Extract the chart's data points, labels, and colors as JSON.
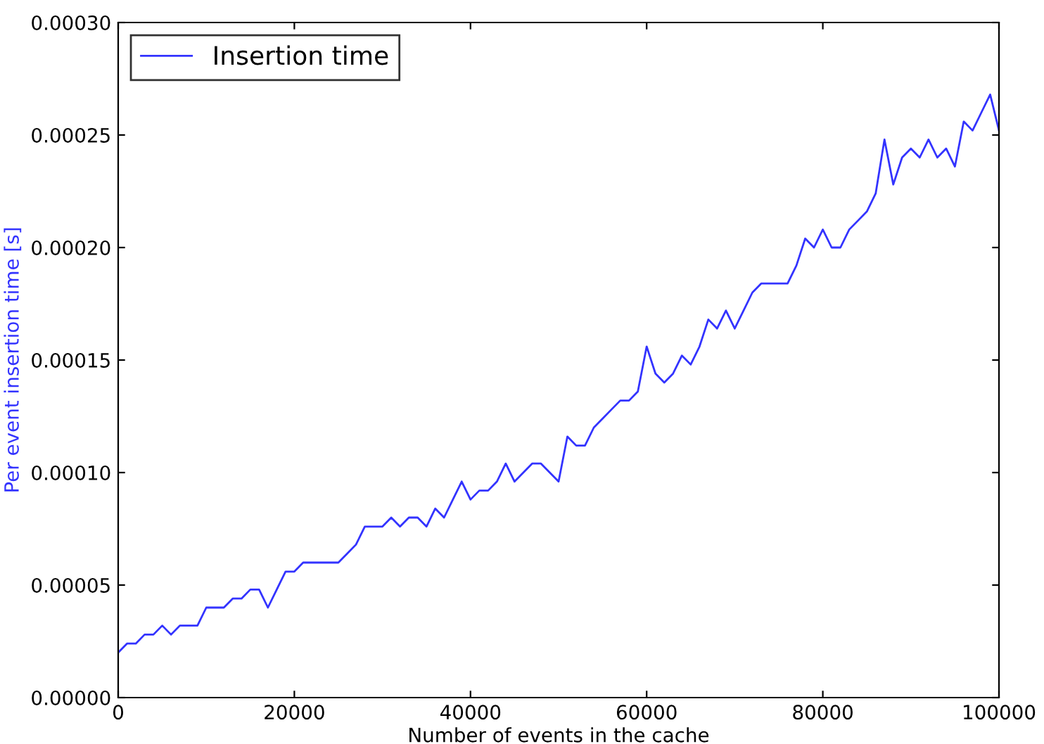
{
  "chart_data": {
    "type": "line",
    "xlabel": "Number of events in the cache",
    "ylabel": "Per event insertion time [s]",
    "x": [
      0,
      1000,
      2000,
      3000,
      4000,
      5000,
      6000,
      7000,
      8000,
      9000,
      10000,
      11000,
      12000,
      13000,
      14000,
      15000,
      16000,
      17000,
      18000,
      19000,
      20000,
      21000,
      22000,
      23000,
      24000,
      25000,
      26000,
      27000,
      28000,
      29000,
      30000,
      31000,
      32000,
      33000,
      34000,
      35000,
      36000,
      37000,
      38000,
      39000,
      40000,
      41000,
      42000,
      43000,
      44000,
      45000,
      46000,
      47000,
      48000,
      49000,
      50000,
      51000,
      52000,
      53000,
      54000,
      55000,
      56000,
      57000,
      58000,
      59000,
      60000,
      61000,
      62000,
      63000,
      64000,
      65000,
      66000,
      67000,
      68000,
      69000,
      70000,
      71000,
      72000,
      73000,
      74000,
      75000,
      76000,
      77000,
      78000,
      79000,
      80000,
      81000,
      82000,
      83000,
      84000,
      85000,
      86000,
      87000,
      88000,
      89000,
      90000,
      91000,
      92000,
      93000,
      94000,
      95000,
      96000,
      97000,
      98000,
      99000,
      100000
    ],
    "series": [
      {
        "name": "Insertion time",
        "color": "#3333ff",
        "values": [
          2e-05,
          2.4e-05,
          2.4e-05,
          2.8e-05,
          2.8e-05,
          3.2e-05,
          2.8e-05,
          3.2e-05,
          3.2e-05,
          3.2e-05,
          4e-05,
          4e-05,
          4e-05,
          4.4e-05,
          4.4e-05,
          4.8e-05,
          4.8e-05,
          4e-05,
          4.8e-05,
          5.6e-05,
          5.6e-05,
          6e-05,
          6e-05,
          6e-05,
          6e-05,
          6e-05,
          6.4e-05,
          6.8e-05,
          7.6e-05,
          7.6e-05,
          7.6e-05,
          8e-05,
          7.6e-05,
          8e-05,
          8e-05,
          7.6e-05,
          8.4e-05,
          8e-05,
          8.8e-05,
          9.6e-05,
          8.8e-05,
          9.2e-05,
          9.2e-05,
          9.6e-05,
          0.000104,
          9.6e-05,
          0.0001,
          0.000104,
          0.000104,
          0.0001,
          9.6e-05,
          0.000116,
          0.000112,
          0.000112,
          0.00012,
          0.000124,
          0.000128,
          0.000132,
          0.000132,
          0.000136,
          0.000156,
          0.000144,
          0.00014,
          0.000144,
          0.000152,
          0.000148,
          0.000156,
          0.000168,
          0.000164,
          0.000172,
          0.000164,
          0.000172,
          0.00018,
          0.000184,
          0.000184,
          0.000184,
          0.000184,
          0.000192,
          0.000204,
          0.0002,
          0.000208,
          0.0002,
          0.0002,
          0.000208,
          0.000212,
          0.000216,
          0.000224,
          0.000248,
          0.000228,
          0.00024,
          0.000244,
          0.00024,
          0.000248,
          0.00024,
          0.000244,
          0.000236,
          0.000256,
          0.000252,
          0.00026,
          0.000268,
          0.000252
        ]
      }
    ],
    "xlim": [
      0,
      100000
    ],
    "xticks": [
      0,
      20000,
      40000,
      60000,
      80000,
      100000
    ],
    "ylim": [
      0,
      0.0003
    ],
    "yticks": [
      {
        "value": 0,
        "label": "0.00000"
      },
      {
        "value": 5e-05,
        "label": "0.00005"
      },
      {
        "value": 0.0001,
        "label": "0.00010"
      },
      {
        "value": 0.00015,
        "label": "0.00015"
      },
      {
        "value": 0.0002,
        "label": "0.00020"
      },
      {
        "value": 0.00025,
        "label": "0.00025"
      },
      {
        "value": 0.0003,
        "label": "0.00030"
      }
    ],
    "grid": false,
    "legend": "top left",
    "marker": "none",
    "line_style": "solid"
  }
}
